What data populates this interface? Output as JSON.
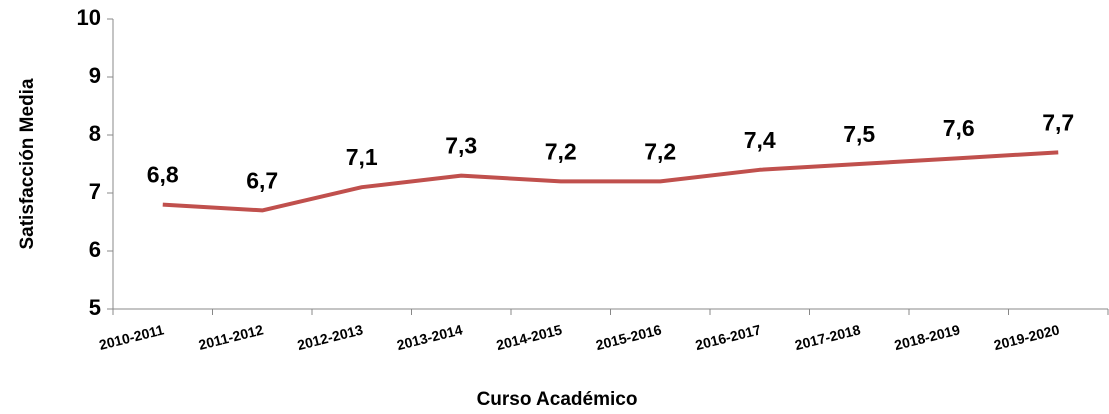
{
  "chart_data": {
    "type": "line",
    "x_label": "Curso Académico",
    "y_label": "Satisfacción Media",
    "categories": [
      "2010-2011",
      "2011-2012",
      "2012-2013",
      "2013-2014",
      "2014-2015",
      "2015-2016",
      "2016-2017",
      "2017-2018",
      "2018-2019",
      "2019-2020"
    ],
    "series": [
      {
        "name": "Satisfacción Media",
        "color": "#c0504d",
        "values": [
          6.8,
          6.7,
          7.1,
          7.3,
          7.2,
          7.2,
          7.4,
          7.5,
          7.6,
          7.7
        ],
        "value_labels": [
          "6,8",
          "6,7",
          "7,1",
          "7,3",
          "7,2",
          "7,2",
          "7,4",
          "7,5",
          "7,6",
          "7,7"
        ]
      }
    ],
    "ylim": [
      5,
      10
    ],
    "yticks": [
      5,
      6,
      7,
      8,
      9,
      10
    ],
    "grid": false
  }
}
